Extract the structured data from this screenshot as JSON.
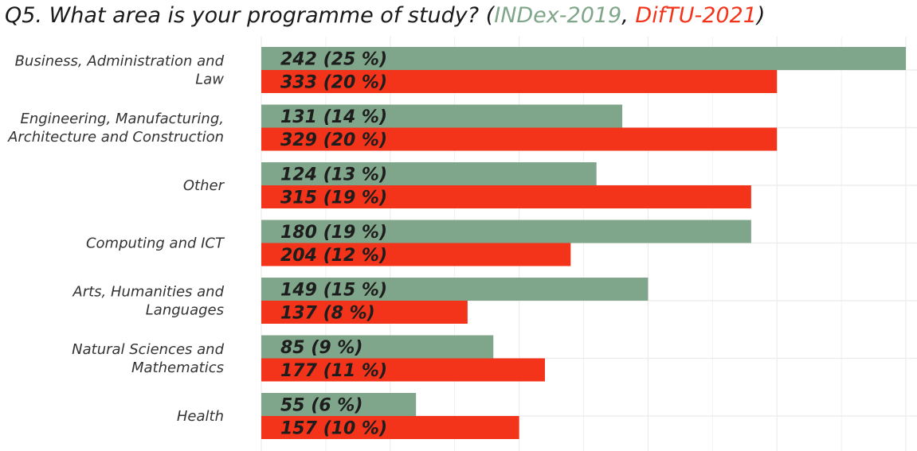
{
  "colors": {
    "index2019": "#7fa68a",
    "diftu2021": "#f3331a",
    "title_text": "#1a1a1a",
    "grid": "#ebebeb"
  },
  "title": {
    "prefix": "Q5. What area is your programme of study? (",
    "series1": "INDex-2019",
    "separator": ", ",
    "series2": "DifTU-2021",
    "suffix": ")"
  },
  "chart_data": {
    "type": "bar",
    "orientation": "horizontal",
    "title": "Q5. What area is your programme of study? (INDex-2019, DifTU-2021)",
    "xlabel": "",
    "ylabel": "",
    "xlim": [
      0,
      25
    ],
    "grid": true,
    "legend": "none",
    "categories": [
      [
        "Business, Administration and",
        "Law"
      ],
      [
        "Engineering, Manufacturing,",
        "Architecture and Construction"
      ],
      [
        "Other"
      ],
      [
        "Computing and ICT"
      ],
      [
        "Arts, Humanities and",
        "Languages"
      ],
      [
        "Natural Sciences and",
        "Mathematics"
      ],
      [
        "Health"
      ]
    ],
    "series": [
      {
        "name": "INDex-2019",
        "counts": [
          242,
          131,
          124,
          180,
          149,
          85,
          55
        ],
        "percents": [
          25,
          14,
          13,
          19,
          15,
          9,
          6
        ],
        "labels": [
          "242  (25 %)",
          "131  (14 %)",
          "124  (13 %)",
          "180  (19 %)",
          "149  (15 %)",
          "85  (9 %)",
          "55  (6 %)"
        ]
      },
      {
        "name": "DifTU-2021",
        "counts": [
          333,
          329,
          315,
          204,
          137,
          177,
          157
        ],
        "percents": [
          20,
          20,
          19,
          12,
          8,
          11,
          10
        ],
        "labels": [
          "333  (20 %)",
          "329  (20 %)",
          "315  (19 %)",
          "204  (12 %)",
          "137  (8 %)",
          "177  (11 %)",
          "157  (10 %)"
        ]
      }
    ]
  }
}
